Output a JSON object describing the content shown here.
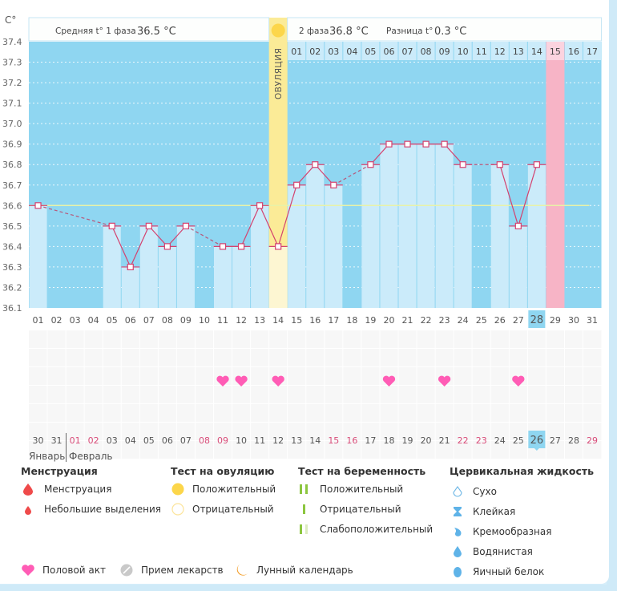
{
  "header": {
    "unit_label": "C°",
    "phase1_label": "Средняя t° 1 фаза",
    "phase1_value": "36.5 °C",
    "phase2_label": "2 фаза",
    "phase2_value": "36.8 °C",
    "diff_label": "Разница t°",
    "diff_value": "0.3 °C",
    "ovulation_label": "ОВУЛЯЦИЯ"
  },
  "colors": {
    "sky": "#8fd6f1",
    "bar": "#cbebfa",
    "ovulation": "#fbeb97",
    "menstruation": "#f7b4c6",
    "line": "#d4426f",
    "coverline": "#e8f2a8",
    "heart": "#ff5cb5",
    "highlight": "#8fd6f1"
  },
  "chart_data": {
    "type": "line",
    "title": "",
    "xlabel": "",
    "ylabel": "C°",
    "ylim": [
      36.1,
      37.4
    ],
    "yticks": [
      "37.4",
      "37.3",
      "37.2",
      "37.1",
      "37.0",
      "36.9",
      "36.8",
      "36.7",
      "36.6",
      "36.5",
      "36.4",
      "36.3",
      "36.2",
      "36.1"
    ],
    "cycle_days": [
      "01",
      "02",
      "03",
      "04",
      "05",
      "06",
      "07",
      "08",
      "09",
      "10",
      "11",
      "12",
      "13",
      "14",
      "15",
      "16",
      "17",
      "18",
      "19",
      "20",
      "21",
      "22",
      "23",
      "24",
      "25",
      "26",
      "27",
      "28",
      "29",
      "30",
      "31"
    ],
    "top_cycle_days": [
      "01",
      "02",
      "03",
      "04",
      "05",
      "06",
      "07",
      "08",
      "09",
      "10",
      "11",
      "12",
      "13",
      "14",
      "15",
      "16",
      "17"
    ],
    "temperature": [
      36.6,
      null,
      null,
      null,
      36.5,
      36.3,
      36.5,
      36.4,
      36.5,
      null,
      36.4,
      36.4,
      36.6,
      36.4,
      36.7,
      36.8,
      36.7,
      null,
      36.8,
      36.9,
      36.9,
      36.9,
      36.9,
      36.8,
      null,
      36.8,
      36.5,
      36.8,
      null,
      null,
      null
    ],
    "coverline": 36.6,
    "ovulation_day": 14,
    "menstruation_day": 29,
    "current_cycle_day": 28,
    "intercourse_days": [
      11,
      12,
      14,
      20,
      23,
      27
    ],
    "calendar_dates": [
      "30",
      "31",
      "01",
      "02",
      "03",
      "04",
      "05",
      "06",
      "07",
      "08",
      "09",
      "10",
      "11",
      "12",
      "13",
      "14",
      "15",
      "16",
      "17",
      "18",
      "19",
      "20",
      "21",
      "22",
      "23",
      "24",
      "25",
      "26",
      "27",
      "28",
      "29"
    ],
    "weekend_dates": [
      "01",
      "02",
      "08",
      "09",
      "15",
      "16",
      "22",
      "23",
      "29"
    ],
    "today_date": "26",
    "month_prev": "Январь",
    "month_next": "Февраль"
  },
  "legend": {
    "menstruation": {
      "title": "Менструация",
      "items": [
        "Менструация",
        "Небольшие выделения"
      ]
    },
    "ovulation_test": {
      "title": "Тест на овуляцию",
      "items": [
        "Положительный",
        "Отрицательный"
      ]
    },
    "pregnancy_test": {
      "title": "Тест на беременность",
      "items": [
        "Положительный",
        "Отрицательный",
        "Слабоположительный"
      ]
    },
    "cervical": {
      "title": "Цервикальная жидкость",
      "items": [
        "Сухо",
        "Клейкая",
        "Кремообразная",
        "Водянистая",
        "Яичный белок"
      ]
    },
    "other": [
      "Половой акт",
      "Прием лекарств",
      "Лунный календарь"
    ]
  }
}
